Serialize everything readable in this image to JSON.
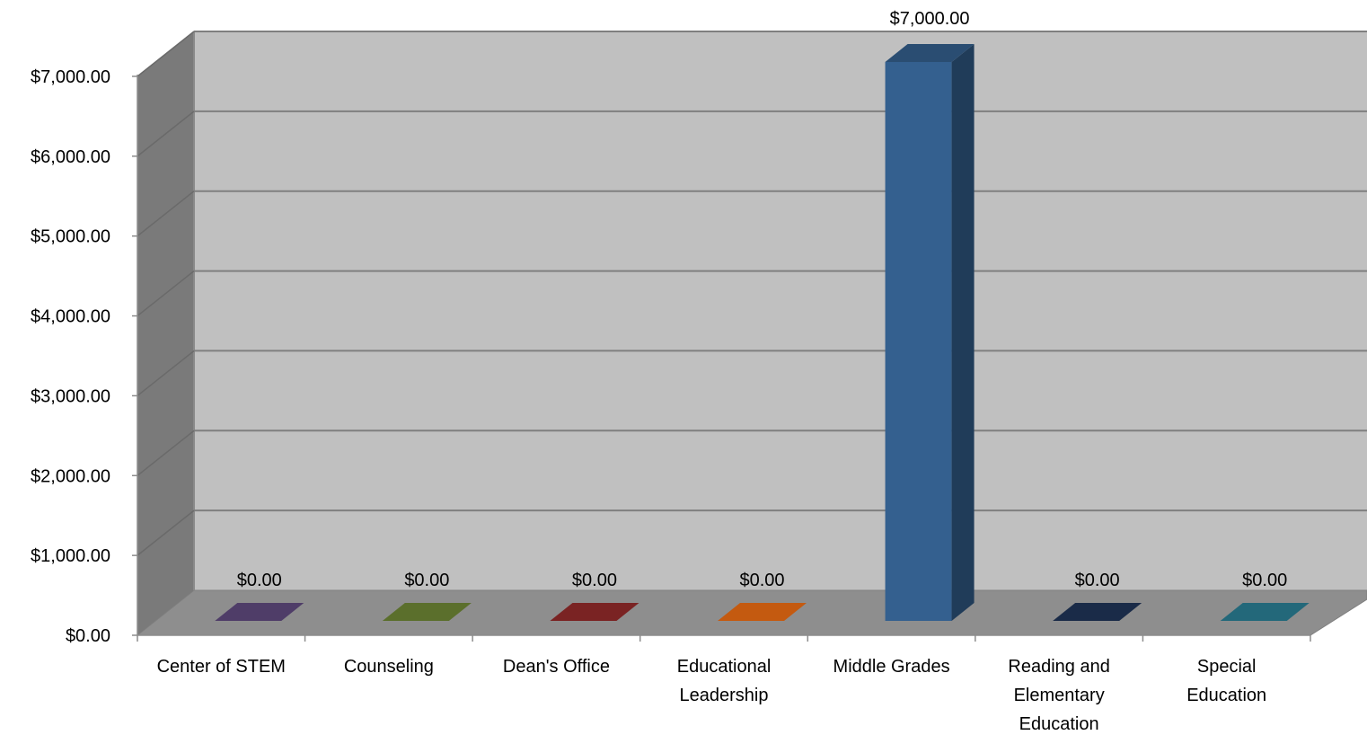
{
  "chart_data": {
    "type": "bar",
    "title": "",
    "xlabel": "",
    "ylabel": "",
    "categories": [
      [
        "Center of STEM"
      ],
      [
        "Counseling"
      ],
      [
        "Dean's Office"
      ],
      [
        "Educational",
        "Leadership"
      ],
      [
        "Middle Grades"
      ],
      [
        "Reading and",
        "Elementary",
        "Education"
      ],
      [
        "Special",
        "Education"
      ]
    ],
    "values": [
      0,
      0,
      0,
      0,
      7000,
      0,
      0
    ],
    "value_labels": [
      "$0.00",
      "$0.00",
      "$0.00",
      "$0.00",
      "$7,000.00",
      "$0.00",
      "$0.00"
    ],
    "colors": [
      "#4f3d68",
      "#5b6f2c",
      "#7a2323",
      "#c45a10",
      "#34608f",
      "#1a2b48",
      "#23687a"
    ],
    "y_ticks": [
      0,
      1000,
      2000,
      3000,
      4000,
      5000,
      6000,
      7000
    ],
    "y_tick_labels": [
      "$0.00",
      "$1,000.00",
      "$2,000.00",
      "$3,000.00",
      "$4,000.00",
      "$5,000.00",
      "$6,000.00",
      "$7,000.00"
    ],
    "ylim": [
      0,
      7000
    ],
    "grid": true,
    "legend": "none",
    "style": "3d-column"
  }
}
